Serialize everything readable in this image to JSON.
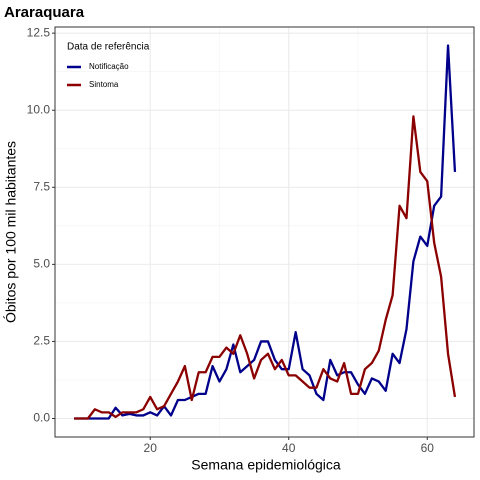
{
  "chart_data": {
    "type": "line",
    "title": "Araraquara",
    "x_label": "Semana epidemiológica",
    "y_label": "Óbitos por 100 mil habitantes",
    "legend_title": "Data de referência",
    "legend_position": "top-left",
    "grid": true,
    "x": [
      9,
      10,
      11,
      12,
      13,
      14,
      15,
      16,
      17,
      18,
      19,
      20,
      21,
      22,
      23,
      24,
      25,
      26,
      27,
      28,
      29,
      30,
      31,
      32,
      33,
      34,
      35,
      36,
      37,
      38,
      39,
      40,
      41,
      42,
      43,
      44,
      45,
      46,
      47,
      48,
      49,
      50,
      51,
      52,
      53,
      54,
      55,
      56,
      57,
      58,
      59,
      60,
      61,
      62,
      63,
      64
    ],
    "series": [
      {
        "name": "Notificação",
        "color": "#00008b",
        "values": [
          0,
          0,
          0,
          0,
          0,
          0,
          0.35,
          0.1,
          0.15,
          0.1,
          0.1,
          0.2,
          0.1,
          0.4,
          0.1,
          0.6,
          0.6,
          0.7,
          0.8,
          0.8,
          1.7,
          1.2,
          1.6,
          2.4,
          1.5,
          1.7,
          1.9,
          2.5,
          2.5,
          1.9,
          1.6,
          1.6,
          2.8,
          1.6,
          1.4,
          0.8,
          0.6,
          1.9,
          1.4,
          1.5,
          1.5,
          1.1,
          0.8,
          1.3,
          1.2,
          0.9,
          2.1,
          1.8,
          2.9,
          5.1,
          5.9,
          5.6,
          6.9,
          7.2,
          12.1,
          8.0
        ]
      },
      {
        "name": "Sintoma",
        "color": "#8b0000",
        "values": [
          0,
          0,
          0,
          0.3,
          0.2,
          0.2,
          0.05,
          0.2,
          0.2,
          0.2,
          0.3,
          0.7,
          0.3,
          0.4,
          0.8,
          1.2,
          1.7,
          0.6,
          1.5,
          1.5,
          2.0,
          2.0,
          2.3,
          2.1,
          2.7,
          2.1,
          1.3,
          1.9,
          2.1,
          1.6,
          1.9,
          1.4,
          1.4,
          1.2,
          1.0,
          1.0,
          1.6,
          1.3,
          1.2,
          1.8,
          0.8,
          0.8,
          1.6,
          1.8,
          2.2,
          3.2,
          4.0,
          6.9,
          6.5,
          9.8,
          8.0,
          7.7,
          5.7,
          4.6,
          2.1,
          0.7
        ]
      }
    ],
    "xlim": [
      6.25,
      66.75
    ],
    "xticks": [
      20,
      40,
      60
    ],
    "ylim": [
      -0.6,
      12.7
    ],
    "yticks": [
      {
        "value": 0,
        "label": "0.0"
      },
      {
        "value": 2.5,
        "label": "2.5"
      },
      {
        "value": 5,
        "label": "5.0"
      },
      {
        "value": 7.5,
        "label": "7.5"
      },
      {
        "value": 10,
        "label": "10.0"
      },
      {
        "value": 12.5,
        "label": "12.5"
      }
    ]
  }
}
